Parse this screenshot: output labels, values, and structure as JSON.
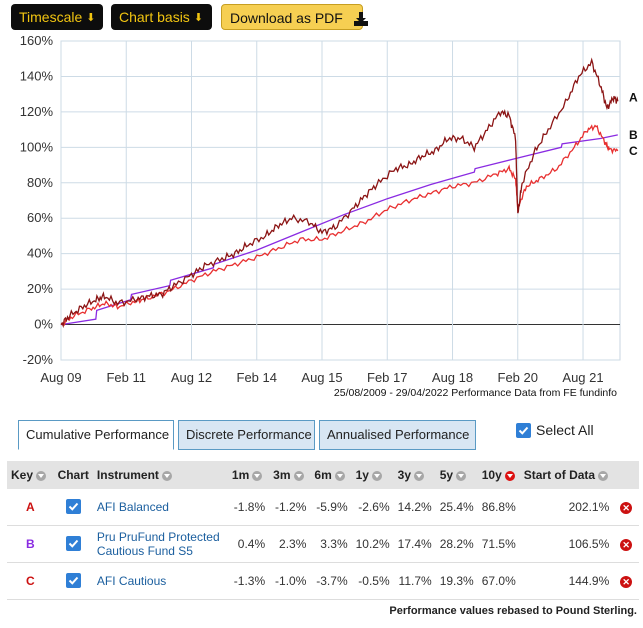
{
  "toolbar": {
    "timescale_label": "Timescale",
    "chart_basis_label": "Chart basis",
    "download_label": "Download as PDF"
  },
  "chart_caption": "25/08/2009 - 29/04/2022 Performance Data from FE fundinfo",
  "chart_data": {
    "type": "line",
    "x_ticks": [
      "Aug 09",
      "Feb 11",
      "Aug 12",
      "Feb 14",
      "Aug 15",
      "Feb 17",
      "Aug 18",
      "Feb 20",
      "Aug 21"
    ],
    "y_ticks": [
      "160%",
      "140%",
      "120%",
      "100%",
      "80%",
      "60%",
      "40%",
      "20%",
      "0%",
      "-20%"
    ],
    "ylim": [
      -20,
      160
    ],
    "grid": true,
    "series": [
      {
        "name": "A",
        "color": "#8b1414",
        "points": [
          [
            0,
            0
          ],
          [
            0.2,
            5
          ],
          [
            0.5,
            10
          ],
          [
            0.8,
            14
          ],
          [
            1,
            16
          ],
          [
            1.3,
            12
          ],
          [
            1.7,
            14
          ],
          [
            2,
            16
          ],
          [
            2.3,
            17
          ],
          [
            2.6,
            22
          ],
          [
            3,
            28
          ],
          [
            3.3,
            33
          ],
          [
            3.7,
            37
          ],
          [
            4,
            40
          ],
          [
            4.3,
            45
          ],
          [
            4.7,
            50
          ],
          [
            5,
            56
          ],
          [
            5.3,
            60
          ],
          [
            5.7,
            58
          ],
          [
            6,
            52
          ],
          [
            6.3,
            55
          ],
          [
            6.7,
            65
          ],
          [
            7,
            73
          ],
          [
            7.3,
            80
          ],
          [
            7.7,
            88
          ],
          [
            8,
            90
          ],
          [
            8.3,
            95
          ],
          [
            8.6,
            98
          ],
          [
            8.9,
            105
          ],
          [
            9.2,
            105
          ],
          [
            9.5,
            100
          ],
          [
            9.8,
            110
          ],
          [
            10.1,
            120
          ],
          [
            10.3,
            118
          ],
          [
            10.45,
            105
          ],
          [
            10.5,
            62
          ],
          [
            10.6,
            80
          ],
          [
            10.9,
            98
          ],
          [
            11.2,
            110
          ],
          [
            11.6,
            125
          ],
          [
            11.9,
            140
          ],
          [
            12.2,
            148
          ],
          [
            12.4,
            135
          ],
          [
            12.55,
            122
          ],
          [
            12.7,
            128
          ],
          [
            12.8,
            126
          ]
        ]
      },
      {
        "name": "B",
        "color": "#8a2be2",
        "points": [
          [
            0,
            0
          ],
          [
            0.8,
            3
          ],
          [
            0.82,
            8
          ],
          [
            1.6,
            14
          ],
          [
            1.62,
            17
          ],
          [
            2.5,
            22
          ],
          [
            2.52,
            25
          ],
          [
            3.5,
            32
          ],
          [
            3.52,
            34
          ],
          [
            4.5,
            42
          ],
          [
            5.5,
            52
          ],
          [
            6.5,
            62
          ],
          [
            7.5,
            71
          ],
          [
            8.5,
            79
          ],
          [
            9.5,
            86
          ],
          [
            9.52,
            88
          ],
          [
            10.5,
            94
          ],
          [
            11.5,
            100
          ],
          [
            11.52,
            102
          ],
          [
            12.4,
            105
          ],
          [
            12.8,
            107
          ]
        ]
      },
      {
        "name": "C",
        "color": "#e83030",
        "points": [
          [
            0,
            0
          ],
          [
            0.3,
            5
          ],
          [
            0.7,
            9
          ],
          [
            1,
            12
          ],
          [
            1.3,
            10
          ],
          [
            1.7,
            13
          ],
          [
            2,
            15
          ],
          [
            2.5,
            19
          ],
          [
            3,
            25
          ],
          [
            3.5,
            30
          ],
          [
            4,
            34
          ],
          [
            4.5,
            38
          ],
          [
            5,
            43
          ],
          [
            5.5,
            48
          ],
          [
            6,
            48
          ],
          [
            6.5,
            53
          ],
          [
            7,
            58
          ],
          [
            7.5,
            65
          ],
          [
            8,
            70
          ],
          [
            8.5,
            74
          ],
          [
            9,
            78
          ],
          [
            9.5,
            80
          ],
          [
            10,
            85
          ],
          [
            10.3,
            88
          ],
          [
            10.45,
            82
          ],
          [
            10.5,
            66
          ],
          [
            10.7,
            78
          ],
          [
            11,
            82
          ],
          [
            11.4,
            88
          ],
          [
            11.8,
            100
          ],
          [
            12.1,
            110
          ],
          [
            12.3,
            112
          ],
          [
            12.5,
            103
          ],
          [
            12.6,
            99
          ],
          [
            12.8,
            98
          ]
        ]
      }
    ],
    "series_labels": [
      "A",
      "B",
      "C"
    ]
  },
  "tabs": [
    {
      "label": "Cumulative Performance",
      "active": true
    },
    {
      "label": "Discrete Performance",
      "active": false
    },
    {
      "label": "Annualised Performance",
      "active": false
    }
  ],
  "select_all_label": "Select All",
  "table": {
    "headers": {
      "key": "Key",
      "chart": "Chart",
      "instrument": "Instrument",
      "m1": "1m",
      "m3": "3m",
      "m6": "6m",
      "y1": "1y",
      "y3": "3y",
      "y5": "5y",
      "y10": "10y",
      "start": "Start of Data"
    },
    "rows": [
      {
        "key": "A",
        "key_color": "#cc1111",
        "instrument": "AFI Balanced",
        "m1": "-1.8%",
        "m3": "-1.2%",
        "m6": "-5.9%",
        "y1": "-2.6%",
        "y3": "14.2%",
        "y5": "25.4%",
        "y10": "86.8%",
        "start": "202.1%"
      },
      {
        "key": "B",
        "key_color": "#8a2be2",
        "instrument": "Pru PruFund Protected Cautious Fund S5",
        "m1": "0.4%",
        "m3": "2.3%",
        "m6": "3.3%",
        "y1": "10.2%",
        "y3": "17.4%",
        "y5": "28.2%",
        "y10": "71.5%",
        "start": "106.5%"
      },
      {
        "key": "C",
        "key_color": "#cc1111",
        "instrument": "AFI Cautious",
        "m1": "-1.3%",
        "m3": "-1.0%",
        "m6": "-3.7%",
        "y1": "-0.5%",
        "y3": "11.7%",
        "y5": "19.3%",
        "y10": "67.0%",
        "start": "144.9%"
      }
    ]
  },
  "footer_note": "Performance values rebased to Pound Sterling."
}
